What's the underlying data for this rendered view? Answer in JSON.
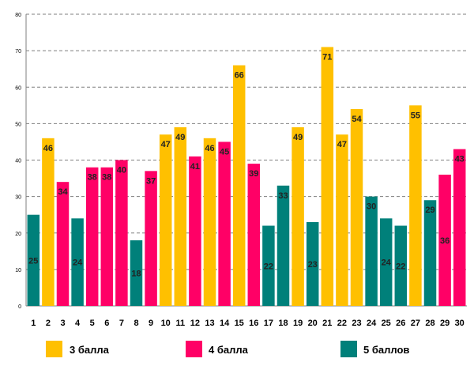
{
  "colors": {
    "three": "#FFC000",
    "four": "#FF0066",
    "five": "#00807A"
  },
  "legend": [
    {
      "key": "three",
      "label": "3 балла"
    },
    {
      "key": "four",
      "label": "4 балла"
    },
    {
      "key": "five",
      "label": "5 баллов"
    }
  ],
  "chart_data": {
    "type": "bar",
    "title": "",
    "xlabel": "",
    "ylabel": "",
    "ylim": [
      0,
      80
    ],
    "yticks": [
      0,
      10,
      20,
      30,
      40,
      50,
      60,
      70,
      80
    ],
    "grid": true,
    "legend_position": "bottom",
    "categories": [
      "1",
      "2",
      "3",
      "4",
      "5",
      "6",
      "7",
      "8",
      "9",
      "10",
      "11",
      "12",
      "13",
      "14",
      "15",
      "16",
      "17",
      "18",
      "19",
      "20",
      "21",
      "22",
      "23",
      "24",
      "25",
      "26",
      "27",
      "28",
      "29",
      "30"
    ],
    "values": [
      25,
      46,
      34,
      24,
      38,
      38,
      40,
      18,
      37,
      47,
      49,
      41,
      46,
      45,
      66,
      39,
      22,
      33,
      49,
      23,
      71,
      47,
      54,
      30,
      24,
      22,
      55,
      29,
      36,
      43
    ],
    "grade": [
      "five",
      "three",
      "four",
      "five",
      "four",
      "four",
      "four",
      "five",
      "four",
      "three",
      "three",
      "four",
      "three",
      "four",
      "three",
      "four",
      "five",
      "five",
      "three",
      "five",
      "three",
      "three",
      "three",
      "five",
      "five",
      "five",
      "three",
      "five",
      "four",
      "four"
    ],
    "label_positions": [
      "mid",
      "top",
      "top",
      "mid",
      "top",
      "top",
      "top",
      "mid",
      "top",
      "top",
      "top",
      "top",
      "top",
      "top",
      "top",
      "top",
      "mid",
      "top",
      "top",
      "mid",
      "top",
      "top",
      "top",
      "top",
      "mid",
      "mid",
      "top",
      "top",
      "mid",
      "top"
    ]
  }
}
